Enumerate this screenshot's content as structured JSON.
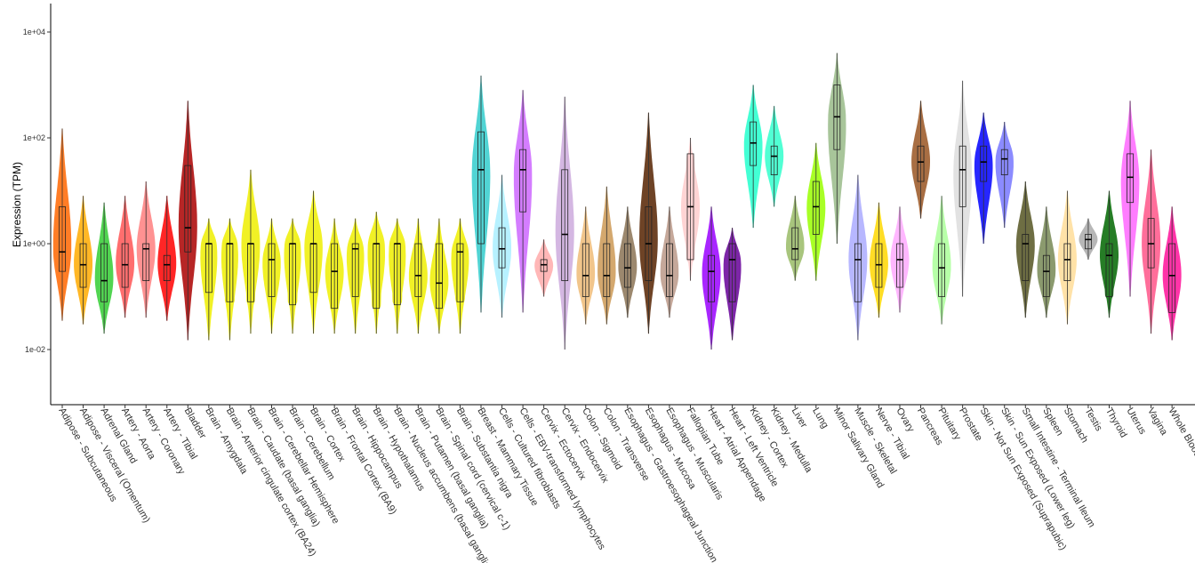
{
  "chart_data": {
    "type": "violin",
    "ylabel": "Expression (TPM)",
    "xlabel": "",
    "yscale": "log10",
    "ylim": [
      0.001,
      30000
    ],
    "yticks": [
      0.01,
      1,
      100,
      10000
    ],
    "ytick_labels": [
      "1e-02",
      "1e+00",
      "1e+02",
      "1e+04"
    ],
    "grid": false,
    "legend": "none",
    "categories": [
      {
        "name": "Adipose - Subcutaneous",
        "color": "#FF6600",
        "min": 0.035,
        "q1": 0.3,
        "median": 0.7,
        "q3": 5,
        "max": 150
      },
      {
        "name": "Adipose - Visceral (Omentum)",
        "color": "#FFAA00",
        "min": 0.03,
        "q1": 0.15,
        "median": 0.4,
        "q3": 1,
        "max": 8
      },
      {
        "name": "Adrenal Gland",
        "color": "#33CC33",
        "min": 0.02,
        "q1": 0.08,
        "median": 0.2,
        "q3": 1,
        "max": 6
      },
      {
        "name": "Artery - Aorta",
        "color": "#FF5555",
        "min": 0.04,
        "q1": 0.15,
        "median": 0.4,
        "q3": 1,
        "max": 8
      },
      {
        "name": "Artery - Coronary",
        "color": "#FF7F7F",
        "min": 0.04,
        "q1": 0.2,
        "median": 0.8,
        "q3": 1,
        "max": 15
      },
      {
        "name": "Artery - Tibial",
        "color": "#FF0000",
        "min": 0.035,
        "q1": 0.2,
        "median": 0.4,
        "q3": 0.6,
        "max": 8
      },
      {
        "name": "Bladder",
        "color": "#AA0000",
        "min": 0.015,
        "q1": 0.7,
        "median": 2,
        "q3": 30,
        "max": 500
      },
      {
        "name": "Brain - Amygdala",
        "color": "#EEEE00",
        "min": 0.015,
        "q1": 0.12,
        "median": 1,
        "q3": 1,
        "max": 3
      },
      {
        "name": "Brain - Anterior cingulate cortex (BA24)",
        "color": "#EEEE00",
        "min": 0.015,
        "q1": 0.08,
        "median": 1,
        "q3": 1,
        "max": 3
      },
      {
        "name": "Brain - Caudate (basal ganglia)",
        "color": "#EEEE00",
        "min": 0.02,
        "q1": 0.08,
        "median": 1,
        "q3": 1,
        "max": 25
      },
      {
        "name": "Brain - Cerebellar Hemisphere",
        "color": "#EEEE00",
        "min": 0.02,
        "q1": 0.1,
        "median": 0.5,
        "q3": 1,
        "max": 3
      },
      {
        "name": "Brain - Cerebellum",
        "color": "#EEEE00",
        "min": 0.02,
        "q1": 0.07,
        "median": 1,
        "q3": 1,
        "max": 3
      },
      {
        "name": "Brain - Cortex",
        "color": "#EEEE00",
        "min": 0.02,
        "q1": 0.12,
        "median": 1,
        "q3": 1,
        "max": 10
      },
      {
        "name": "Brain - Frontal Cortex (BA9)",
        "color": "#EEEE00",
        "min": 0.02,
        "q1": 0.06,
        "median": 0.3,
        "q3": 1,
        "max": 3
      },
      {
        "name": "Brain - Hippocampus",
        "color": "#EEEE00",
        "min": 0.02,
        "q1": 0.1,
        "median": 0.8,
        "q3": 1,
        "max": 3
      },
      {
        "name": "Brain - Hypothalamus",
        "color": "#EEEE00",
        "min": 0.02,
        "q1": 0.06,
        "median": 1,
        "q3": 1,
        "max": 4
      },
      {
        "name": "Brain - Nucleus accumbens (basal ganglia)",
        "color": "#EEEE00",
        "min": 0.02,
        "q1": 0.07,
        "median": 1,
        "q3": 1,
        "max": 3
      },
      {
        "name": "Brain - Putamen (basal ganglia)",
        "color": "#EEEE00",
        "min": 0.02,
        "q1": 0.1,
        "median": 0.25,
        "q3": 1,
        "max": 3
      },
      {
        "name": "Brain - Spinal cord (cervical c-1)",
        "color": "#EEEE00",
        "min": 0.02,
        "q1": 0.06,
        "median": 0.18,
        "q3": 1,
        "max": 3
      },
      {
        "name": "Brain - Substantia nigra",
        "color": "#EEEE00",
        "min": 0.02,
        "q1": 0.08,
        "median": 0.7,
        "q3": 1,
        "max": 3
      },
      {
        "name": "Breast - Mammary Tissue",
        "color": "#33CCCC",
        "min": 0.05,
        "q1": 1,
        "median": 25,
        "q3": 130,
        "max": 1500
      },
      {
        "name": "Cells - Cultured fibroblasts",
        "color": "#AAEEFF",
        "min": 0.04,
        "q1": 0.35,
        "median": 0.8,
        "q3": 2,
        "max": 20
      },
      {
        "name": "Cells - EBV-transformed lymphocytes",
        "color": "#CC66FF",
        "min": 0.05,
        "q1": 4,
        "median": 25,
        "q3": 60,
        "max": 800
      },
      {
        "name": "Cervix - Ectocervix",
        "color": "#FFAAAA",
        "min": 0.1,
        "q1": 0.3,
        "median": 0.4,
        "q3": 0.5,
        "max": 1.2
      },
      {
        "name": "Cervix - Endocervix",
        "color": "#CCAADD",
        "min": 0.01,
        "q1": 0.2,
        "median": 1.5,
        "q3": 25,
        "max": 600
      },
      {
        "name": "Colon - Sigmoid",
        "color": "#EEBB77",
        "min": 0.03,
        "q1": 0.1,
        "median": 0.25,
        "q3": 1,
        "max": 5
      },
      {
        "name": "Colon - Transverse",
        "color": "#CC9955",
        "min": 0.03,
        "q1": 0.1,
        "median": 0.25,
        "q3": 1,
        "max": 12
      },
      {
        "name": "Esophagus - Gastroesophageal Junction",
        "color": "#8B7355",
        "min": 0.04,
        "q1": 0.15,
        "median": 0.35,
        "q3": 1,
        "max": 5
      },
      {
        "name": "Esophagus - Mucosa",
        "color": "#552200",
        "min": 0.02,
        "q1": 0.2,
        "median": 1,
        "q3": 5,
        "max": 300
      },
      {
        "name": "Esophagus - Muscularis",
        "color": "#BB9988",
        "min": 0.04,
        "q1": 0.1,
        "median": 0.25,
        "q3": 1,
        "max": 5
      },
      {
        "name": "Fallopian Tube",
        "color": "#FFCCCC",
        "min": 0.2,
        "q1": 0.5,
        "median": 5,
        "q3": 50,
        "max": 100
      },
      {
        "name": "Heart - Atrial Appendage",
        "color": "#9900FF",
        "min": 0.01,
        "q1": 0.08,
        "median": 0.3,
        "q3": 0.6,
        "max": 5
      },
      {
        "name": "Heart - Left Ventricle",
        "color": "#660099",
        "min": 0.015,
        "q1": 0.08,
        "median": 0.5,
        "q3": 1,
        "max": 2
      },
      {
        "name": "Kidney - Cortex",
        "color": "#22FFCC",
        "min": 2,
        "q1": 30,
        "median": 80,
        "q3": 200,
        "max": 1000
      },
      {
        "name": "Kidney - Medulla",
        "color": "#33FFCC",
        "min": 5,
        "q1": 20,
        "median": 45,
        "q3": 70,
        "max": 400
      },
      {
        "name": "Liver",
        "color": "#99BB66",
        "min": 0.2,
        "q1": 0.5,
        "median": 0.8,
        "q3": 2,
        "max": 8
      },
      {
        "name": "Lung",
        "color": "#99FF00",
        "min": 0.2,
        "q1": 1.5,
        "median": 5,
        "q3": 15,
        "max": 80
      },
      {
        "name": "Minor Salivary Gland",
        "color": "#99BB88",
        "min": 1,
        "q1": 60,
        "median": 250,
        "q3": 1000,
        "max": 4000
      },
      {
        "name": "Muscle - Skeletal",
        "color": "#AAAAFF",
        "min": 0.015,
        "q1": 0.08,
        "median": 0.5,
        "q3": 1,
        "max": 20
      },
      {
        "name": "Nerve - Tibial",
        "color": "#FFD700",
        "min": 0.04,
        "q1": 0.15,
        "median": 0.4,
        "q3": 1,
        "max": 6
      },
      {
        "name": "Ovary",
        "color": "#FFAAFF",
        "min": 0.05,
        "q1": 0.15,
        "median": 0.5,
        "q3": 1,
        "max": 5
      },
      {
        "name": "Pancreas",
        "color": "#995522",
        "min": 3,
        "q1": 15,
        "median": 35,
        "q3": 70,
        "max": 500
      },
      {
        "name": "Pituitary",
        "color": "#AAFF99",
        "min": 0.03,
        "q1": 0.1,
        "median": 0.35,
        "q3": 1,
        "max": 8
      },
      {
        "name": "Prostate",
        "color": "#DDDDDD",
        "min": 0.1,
        "q1": 5,
        "median": 25,
        "q3": 70,
        "max": 1200
      },
      {
        "name": "Skin - Not Sun Exposed (Suprapubic)",
        "color": "#0000FF",
        "min": 1,
        "q1": 15,
        "median": 35,
        "q3": 70,
        "max": 300
      },
      {
        "name": "Skin - Sun Exposed (Lower leg)",
        "color": "#7777FF",
        "min": 2,
        "q1": 20,
        "median": 40,
        "q3": 60,
        "max": 200
      },
      {
        "name": "Small Intestine - Terminal Ileum",
        "color": "#555522",
        "min": 0.04,
        "q1": 0.2,
        "median": 1,
        "q3": 1.5,
        "max": 15
      },
      {
        "name": "Spleen",
        "color": "#778855",
        "min": 0.04,
        "q1": 0.1,
        "median": 0.3,
        "q3": 0.6,
        "max": 5
      },
      {
        "name": "Stomach",
        "color": "#FFDD99",
        "min": 0.03,
        "q1": 0.2,
        "median": 0.5,
        "q3": 1,
        "max": 10
      },
      {
        "name": "Testis",
        "color": "#AAAAAA",
        "min": 0.5,
        "q1": 0.8,
        "median": 1.2,
        "q3": 1.5,
        "max": 3
      },
      {
        "name": "Thyroid",
        "color": "#006600",
        "min": 0.04,
        "q1": 0.1,
        "median": 0.6,
        "q3": 1,
        "max": 10
      },
      {
        "name": "Uterus",
        "color": "#FF66FF",
        "min": 0.1,
        "q1": 6,
        "median": 18,
        "q3": 50,
        "max": 500
      },
      {
        "name": "Vagina",
        "color": "#FF5588",
        "min": 0.02,
        "q1": 0.35,
        "median": 1,
        "q3": 3,
        "max": 60
      },
      {
        "name": "Whole Blood",
        "color": "#FF1199",
        "min": 0.015,
        "q1": 0.05,
        "median": 0.25,
        "q3": 1,
        "max": 5
      }
    ]
  }
}
